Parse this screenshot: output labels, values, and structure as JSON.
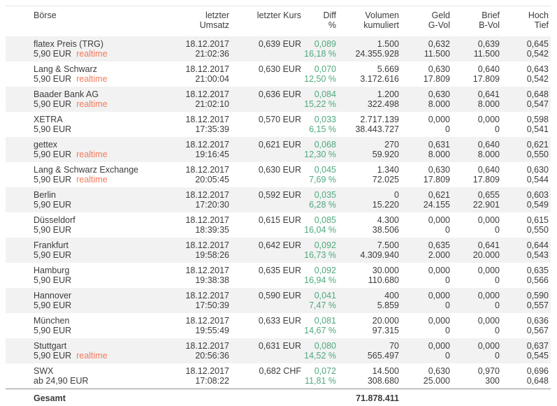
{
  "header": {
    "columns": [
      {
        "l1": "Börse",
        "l2": ""
      },
      {
        "l1": "letzter",
        "l2": "Umsatz"
      },
      {
        "l1": "letzter Kurs",
        "l2": ""
      },
      {
        "l1": "Diff",
        "l2": "%"
      },
      {
        "l1": "Volumen",
        "l2": "kumuliert"
      },
      {
        "l1": "Geld",
        "l2": "G-Vol"
      },
      {
        "l1": "Brief",
        "l2": "B-Vol"
      },
      {
        "l1": "Hoch",
        "l2": "Tief"
      }
    ]
  },
  "rows": [
    {
      "boerse": "flatex Preis (TRG)",
      "fee": "5,90 EUR",
      "realtime_label": "realtime",
      "umsatz_date": "18.12.2017",
      "umsatz_time": "21:02:36",
      "kurs": "0,639 EUR",
      "diff_abs": "0,089",
      "diff_pct": "16,18 %",
      "vol_last": "1.500",
      "vol_kum": "24.355.928",
      "geld": "0,632",
      "g_vol": "11.500",
      "brief": "0,639",
      "b_vol": "11.500",
      "hoch": "0,645",
      "tief": "0,542",
      "shaded": true
    },
    {
      "boerse": "Lang & Schwarz",
      "fee": "5,90 EUR",
      "realtime_label": "realtime",
      "umsatz_date": "18.12.2017",
      "umsatz_time": "21:00:04",
      "kurs": "0,630 EUR",
      "diff_abs": "0,070",
      "diff_pct": "12,50 %",
      "vol_last": "5.669",
      "vol_kum": "3.172.616",
      "geld": "0,630",
      "g_vol": "17.809",
      "brief": "0,640",
      "b_vol": "17.809",
      "hoch": "0,643",
      "tief": "0,542",
      "shaded": false
    },
    {
      "boerse": "Baader Bank AG",
      "fee": "5,90 EUR",
      "realtime_label": "realtime",
      "umsatz_date": "18.12.2017",
      "umsatz_time": "21:02:10",
      "kurs": "0,636 EUR",
      "diff_abs": "0,084",
      "diff_pct": "15,22 %",
      "vol_last": "1.200",
      "vol_kum": "322.498",
      "geld": "0,630",
      "g_vol": "8.000",
      "brief": "0,641",
      "b_vol": "8.000",
      "hoch": "0,648",
      "tief": "0,547",
      "shaded": true
    },
    {
      "boerse": "XETRA",
      "fee": "5,90 EUR",
      "realtime_label": "",
      "umsatz_date": "18.12.2017",
      "umsatz_time": "17:35:39",
      "kurs": "0,570 EUR",
      "diff_abs": "0,033",
      "diff_pct": "6,15 %",
      "vol_last": "2.717.139",
      "vol_kum": "38.443.727",
      "geld": "0,000",
      "g_vol": "0",
      "brief": "0,000",
      "b_vol": "0",
      "hoch": "0,598",
      "tief": "0,541",
      "shaded": false
    },
    {
      "boerse": "gettex",
      "fee": "5,90 EUR",
      "realtime_label": "realtime",
      "umsatz_date": "18.12.2017",
      "umsatz_time": "19:16:45",
      "kurs": "0,621 EUR",
      "diff_abs": "0,068",
      "diff_pct": "12,30 %",
      "vol_last": "270",
      "vol_kum": "59.920",
      "geld": "0,631",
      "g_vol": "8.000",
      "brief": "0,640",
      "b_vol": "8.000",
      "hoch": "0,621",
      "tief": "0,550",
      "shaded": true
    },
    {
      "boerse": "Lang & Schwarz Exchange",
      "fee": "5,90 EUR",
      "realtime_label": "realtime",
      "umsatz_date": "18.12.2017",
      "umsatz_time": "20:05:45",
      "kurs": "0,630 EUR",
      "diff_abs": "0,045",
      "diff_pct": "7,69 %",
      "vol_last": "1.340",
      "vol_kum": "72.025",
      "geld": "0,630",
      "g_vol": "17.809",
      "brief": "0,640",
      "b_vol": "17.809",
      "hoch": "0,630",
      "tief": "0,544",
      "shaded": false
    },
    {
      "boerse": "Berlin",
      "fee": "5,90 EUR",
      "realtime_label": "",
      "umsatz_date": "18.12.2017",
      "umsatz_time": "17:20:30",
      "kurs": "0,592 EUR",
      "diff_abs": "0,035",
      "diff_pct": "6,28 %",
      "vol_last": "0",
      "vol_kum": "15.220",
      "geld": "0,621",
      "g_vol": "24.155",
      "brief": "0,655",
      "b_vol": "22.901",
      "hoch": "0,603",
      "tief": "0,549",
      "shaded": true
    },
    {
      "boerse": "Düsseldorf",
      "fee": "5,90 EUR",
      "realtime_label": "",
      "umsatz_date": "18.12.2017",
      "umsatz_time": "18:39:35",
      "kurs": "0,615 EUR",
      "diff_abs": "0,085",
      "diff_pct": "16,04 %",
      "vol_last": "4.300",
      "vol_kum": "38.506",
      "geld": "0,000",
      "g_vol": "0",
      "brief": "0,000",
      "b_vol": "0",
      "hoch": "0,615",
      "tief": "0,550",
      "shaded": false
    },
    {
      "boerse": "Frankfurt",
      "fee": "5,90 EUR",
      "realtime_label": "",
      "umsatz_date": "18.12.2017",
      "umsatz_time": "19:58:26",
      "kurs": "0,642 EUR",
      "diff_abs": "0,092",
      "diff_pct": "16,73 %",
      "vol_last": "7.500",
      "vol_kum": "4.309.940",
      "geld": "0,635",
      "g_vol": "2.000",
      "brief": "0,641",
      "b_vol": "20.000",
      "hoch": "0,644",
      "tief": "0,543",
      "shaded": true
    },
    {
      "boerse": "Hamburg",
      "fee": "5,90 EUR",
      "realtime_label": "",
      "umsatz_date": "18.12.2017",
      "umsatz_time": "19:38:38",
      "kurs": "0,635 EUR",
      "diff_abs": "0,092",
      "diff_pct": "16,94 %",
      "vol_last": "30.000",
      "vol_kum": "110.680",
      "geld": "0,000",
      "g_vol": "0",
      "brief": "0,000",
      "b_vol": "0",
      "hoch": "0,635",
      "tief": "0,566",
      "shaded": false
    },
    {
      "boerse": "Hannover",
      "fee": "5,90 EUR",
      "realtime_label": "",
      "umsatz_date": "18.12.2017",
      "umsatz_time": "17:50:39",
      "kurs": "0,590 EUR",
      "diff_abs": "0,041",
      "diff_pct": "7,47 %",
      "vol_last": "400",
      "vol_kum": "5.859",
      "geld": "0,000",
      "g_vol": "0",
      "brief": "0,000",
      "b_vol": "0",
      "hoch": "0,590",
      "tief": "0,557",
      "shaded": true
    },
    {
      "boerse": "München",
      "fee": "5,90 EUR",
      "realtime_label": "",
      "umsatz_date": "18.12.2017",
      "umsatz_time": "19:55:49",
      "kurs": "0,633 EUR",
      "diff_abs": "0,081",
      "diff_pct": "14,67 %",
      "vol_last": "20.000",
      "vol_kum": "97.315",
      "geld": "0,000",
      "g_vol": "0",
      "brief": "0,000",
      "b_vol": "0",
      "hoch": "0,636",
      "tief": "0,567",
      "shaded": false
    },
    {
      "boerse": "Stuttgart",
      "fee": "5,90 EUR",
      "realtime_label": "realtime",
      "umsatz_date": "18.12.2017",
      "umsatz_time": "20:56:36",
      "kurs": "0,631 EUR",
      "diff_abs": "0,080",
      "diff_pct": "14,52 %",
      "vol_last": "70",
      "vol_kum": "565.497",
      "geld": "0,000",
      "g_vol": "0",
      "brief": "0,000",
      "b_vol": "0",
      "hoch": "0,637",
      "tief": "0,545",
      "shaded": true
    },
    {
      "boerse": "SWX",
      "fee": "ab 24,90 EUR",
      "realtime_label": "",
      "umsatz_date": "18.12.2017",
      "umsatz_time": "17:08:22",
      "kurs": "0,682 CHF",
      "diff_abs": "0,072",
      "diff_pct": "11,81 %",
      "vol_last": "14.500",
      "vol_kum": "308.680",
      "geld": "0,630",
      "g_vol": "25.000",
      "brief": "0,970",
      "b_vol": "300",
      "hoch": "0,696",
      "tief": "0,648",
      "shaded": false
    }
  ],
  "footer": {
    "label": "Gesamt",
    "total": "71.878.411"
  },
  "colors": {
    "diff_green": "#4fa97d",
    "realtime_orange": "#f3795b",
    "row_shade": "#f2f2f2"
  }
}
